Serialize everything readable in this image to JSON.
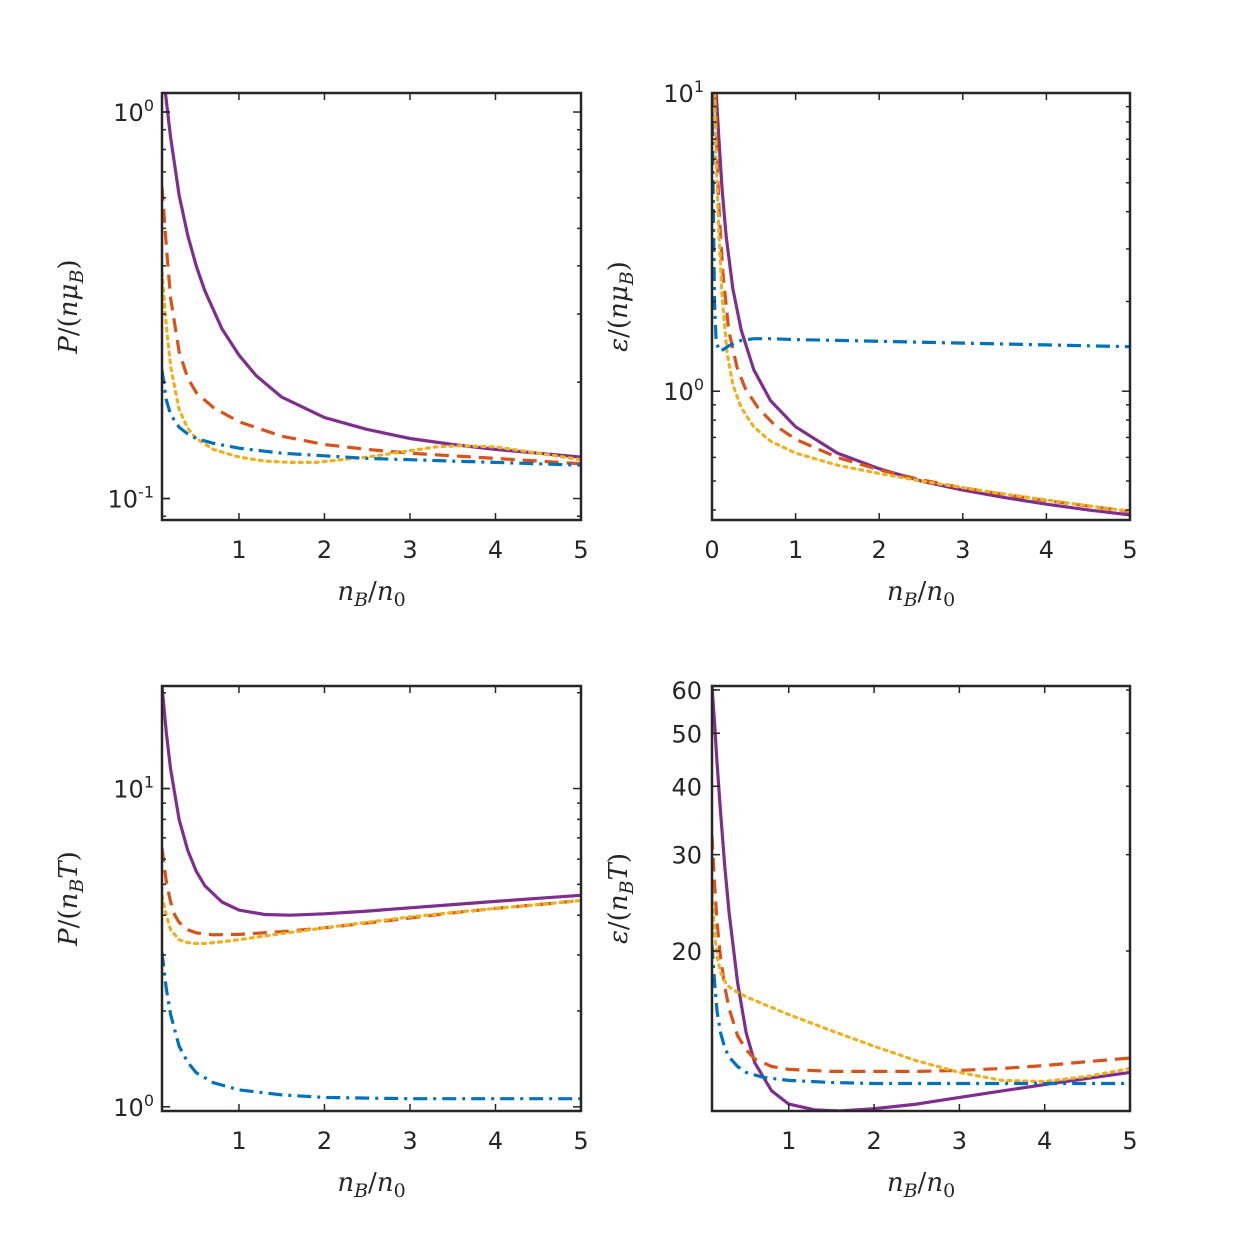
{
  "chart_data": [
    {
      "type": "line",
      "panel": "top-left",
      "xlabel": "n_B/n_0",
      "ylabel": "P/(nμ_B)",
      "yscale": "log",
      "xlim": [
        0.1,
        5
      ],
      "ylim": [
        0.088,
        1.12
      ],
      "xticks": [
        1,
        2,
        3,
        4,
        5
      ],
      "xtick_labels": [
        "1",
        "2",
        "3",
        "4",
        "5"
      ],
      "yticks": [
        0.1,
        1
      ],
      "ytick_labels": [
        {
          "base": "10",
          "exp": "-1"
        },
        {
          "base": "10",
          "exp": "0"
        }
      ],
      "series": [
        {
          "name": "solid",
          "color": "#7E2F8E",
          "style": "solid",
          "x": [
            0.14,
            0.2,
            0.3,
            0.4,
            0.5,
            0.6,
            0.8,
            1.0,
            1.2,
            1.5,
            2.0,
            2.5,
            3.0,
            3.5,
            4.0,
            4.5,
            5.0
          ],
          "y": [
            1.12,
            0.86,
            0.61,
            0.48,
            0.4,
            0.345,
            0.275,
            0.235,
            0.208,
            0.183,
            0.162,
            0.151,
            0.143,
            0.138,
            0.134,
            0.131,
            0.128
          ]
        },
        {
          "name": "dashed",
          "color": "#D95319",
          "style": "dashed",
          "x": [
            0.1,
            0.15,
            0.2,
            0.3,
            0.4,
            0.5,
            0.7,
            1.0,
            1.5,
            2.0,
            2.5,
            3.0,
            3.5,
            4.0,
            4.5,
            5.0
          ],
          "y": [
            0.64,
            0.45,
            0.33,
            0.24,
            0.205,
            0.188,
            0.172,
            0.158,
            0.145,
            0.138,
            0.134,
            0.131,
            0.129,
            0.127,
            0.125,
            0.123
          ]
        },
        {
          "name": "dotted",
          "color": "#EDB120",
          "style": "dotted",
          "x": [
            0.1,
            0.15,
            0.2,
            0.3,
            0.4,
            0.5,
            0.7,
            1.0,
            1.3,
            1.6,
            1.9,
            2.2,
            2.5,
            3.0,
            3.3,
            3.6,
            4.0,
            4.5,
            5.0
          ],
          "y": [
            0.385,
            0.28,
            0.22,
            0.17,
            0.152,
            0.143,
            0.134,
            0.128,
            0.125,
            0.124,
            0.124,
            0.126,
            0.128,
            0.133,
            0.136,
            0.137,
            0.136,
            0.131,
            0.126
          ]
        },
        {
          "name": "dashdot",
          "color": "#0072BD",
          "style": "dashdot",
          "x": [
            0.1,
            0.15,
            0.2,
            0.3,
            0.4,
            0.5,
            0.7,
            1.0,
            1.5,
            2.0,
            2.5,
            3.0,
            3.5,
            4.0,
            4.5,
            5.0
          ],
          "y": [
            0.215,
            0.18,
            0.165,
            0.153,
            0.147,
            0.143,
            0.139,
            0.135,
            0.131,
            0.129,
            0.127,
            0.126,
            0.125,
            0.124,
            0.123,
            0.122
          ]
        }
      ]
    },
    {
      "type": "line",
      "panel": "top-right",
      "xlabel": "n_B/n_0",
      "ylabel": "ε/(nμ_B)",
      "yscale": "log",
      "xlim": [
        0,
        5
      ],
      "ylim": [
        0.37,
        10
      ],
      "xticks": [
        0,
        1,
        2,
        3,
        4,
        5
      ],
      "xtick_labels": [
        "0",
        "1",
        "2",
        "3",
        "4",
        "5"
      ],
      "yticks": [
        1,
        10
      ],
      "ytick_labels": [
        {
          "base": "10",
          "exp": "0"
        },
        {
          "base": "10",
          "exp": "1"
        }
      ],
      "series": [
        {
          "name": "solid",
          "color": "#7E2F8E",
          "style": "solid",
          "x": [
            0.05,
            0.08,
            0.12,
            0.17,
            0.25,
            0.35,
            0.5,
            0.7,
            1.0,
            1.5,
            2.0,
            2.5,
            3.0,
            3.5,
            4.0,
            4.5,
            5.0
          ],
          "y": [
            10,
            7.2,
            4.8,
            3.3,
            2.2,
            1.6,
            1.18,
            0.93,
            0.76,
            0.62,
            0.55,
            0.5,
            0.466,
            0.44,
            0.418,
            0.4,
            0.385
          ]
        },
        {
          "name": "dashed",
          "color": "#D95319",
          "style": "dashed",
          "x": [
            0.04,
            0.06,
            0.09,
            0.13,
            0.2,
            0.3,
            0.4,
            0.55,
            0.75,
            1.0,
            1.5,
            2.0,
            2.5,
            3.0,
            3.5,
            4.0,
            4.5,
            5.0
          ],
          "y": [
            10,
            6.0,
            3.8,
            2.5,
            1.6,
            1.2,
            1.02,
            0.88,
            0.77,
            0.69,
            0.6,
            0.545,
            0.505,
            0.474,
            0.45,
            0.43,
            0.412,
            0.395
          ]
        },
        {
          "name": "dotted",
          "color": "#EDB120",
          "style": "dotted",
          "x": [
            0.03,
            0.05,
            0.08,
            0.12,
            0.18,
            0.25,
            0.35,
            0.5,
            0.7,
            1.0,
            1.5,
            2.0,
            2.5,
            3.0,
            3.5,
            4.0,
            4.5,
            5.0
          ],
          "y": [
            10,
            6.0,
            3.5,
            2.1,
            1.35,
            1.05,
            0.88,
            0.76,
            0.68,
            0.62,
            0.565,
            0.53,
            0.5,
            0.475,
            0.452,
            0.432,
            0.413,
            0.396
          ]
        },
        {
          "name": "dashdot",
          "color": "#0072BD",
          "style": "dashdot",
          "x": [
            0.0,
            0.01,
            0.02,
            0.03,
            0.05,
            0.1,
            0.2,
            0.35,
            0.5,
            0.7,
            1.0,
            1.5,
            2.0,
            2.5,
            3.0,
            3.5,
            4.0,
            4.5,
            5.0
          ],
          "y": [
            10,
            6.0,
            3.3,
            2.0,
            1.45,
            1.36,
            1.42,
            1.48,
            1.5,
            1.5,
            1.49,
            1.48,
            1.47,
            1.46,
            1.45,
            1.44,
            1.43,
            1.42,
            1.41
          ]
        }
      ]
    },
    {
      "type": "line",
      "panel": "bottom-left",
      "xlabel": "n_B/n_0",
      "ylabel": "P/(n_BT)",
      "yscale": "log",
      "xlim": [
        0.1,
        5
      ],
      "ylim": [
        0.97,
        21
      ],
      "xticks": [
        1,
        2,
        3,
        4,
        5
      ],
      "xtick_labels": [
        "1",
        "2",
        "3",
        "4",
        "5"
      ],
      "yticks": [
        1,
        10
      ],
      "ytick_labels": [
        {
          "base": "10",
          "exp": "0"
        },
        {
          "base": "10",
          "exp": "1"
        }
      ],
      "series": [
        {
          "name": "solid",
          "color": "#7E2F8E",
          "style": "solid",
          "x": [
            0.1,
            0.15,
            0.2,
            0.3,
            0.4,
            0.5,
            0.6,
            0.8,
            1.0,
            1.3,
            1.6,
            2.0,
            2.5,
            3.0,
            3.5,
            4.0,
            4.5,
            5.0
          ],
          "y": [
            21,
            15,
            11.5,
            8.0,
            6.4,
            5.5,
            4.95,
            4.4,
            4.15,
            4.02,
            4.0,
            4.04,
            4.12,
            4.22,
            4.32,
            4.42,
            4.52,
            4.62
          ]
        },
        {
          "name": "dashed",
          "color": "#D95319",
          "style": "dashed",
          "x": [
            0.1,
            0.15,
            0.2,
            0.25,
            0.3,
            0.4,
            0.5,
            0.7,
            1.0,
            1.5,
            2.0,
            2.5,
            3.0,
            3.5,
            4.0,
            4.5,
            5.0
          ],
          "y": [
            6.5,
            5.1,
            4.4,
            4.0,
            3.8,
            3.6,
            3.52,
            3.47,
            3.48,
            3.55,
            3.65,
            3.78,
            3.92,
            4.07,
            4.2,
            4.32,
            4.45
          ]
        },
        {
          "name": "dotted",
          "color": "#EDB120",
          "style": "dotted",
          "x": [
            0.1,
            0.15,
            0.2,
            0.3,
            0.4,
            0.5,
            0.6,
            0.8,
            1.0,
            1.5,
            2.0,
            2.5,
            3.0,
            3.5,
            4.0,
            4.5,
            5.0
          ],
          "y": [
            4.6,
            4.0,
            3.6,
            3.35,
            3.28,
            3.26,
            3.26,
            3.3,
            3.35,
            3.5,
            3.65,
            3.8,
            3.95,
            4.08,
            4.2,
            4.32,
            4.45
          ]
        },
        {
          "name": "dashdot",
          "color": "#0072BD",
          "style": "dashdot",
          "x": [
            0.1,
            0.15,
            0.2,
            0.3,
            0.4,
            0.5,
            0.7,
            1.0,
            1.5,
            2.0,
            2.5,
            3.0,
            3.5,
            4.0,
            4.5,
            5.0
          ],
          "y": [
            3.05,
            2.35,
            1.95,
            1.55,
            1.38,
            1.28,
            1.19,
            1.13,
            1.09,
            1.07,
            1.065,
            1.06,
            1.06,
            1.06,
            1.06,
            1.06
          ]
        }
      ]
    },
    {
      "type": "line",
      "panel": "bottom-right",
      "xlabel": "n_B/n_0",
      "ylabel": "ε/(n_BT)",
      "yscale": "log",
      "xlim": [
        0.1,
        5
      ],
      "ylim": [
        10.2,
        61
      ],
      "xticks": [
        1,
        2,
        3,
        4,
        5
      ],
      "xtick_labels": [
        "1",
        "2",
        "3",
        "4",
        "5"
      ],
      "yticks": [
        20,
        30,
        40,
        50,
        60
      ],
      "ytick_labels": [
        "20",
        "30",
        "40",
        "50",
        "60"
      ],
      "series": [
        {
          "name": "solid",
          "color": "#7E2F8E",
          "style": "solid",
          "x": [
            0.1,
            0.13,
            0.16,
            0.2,
            0.25,
            0.3,
            0.4,
            0.5,
            0.6,
            0.8,
            1.0,
            1.3,
            1.6,
            2.0,
            2.5,
            3.0,
            3.5,
            4.0,
            4.5,
            5.0
          ],
          "y": [
            61,
            52,
            44,
            36,
            28.5,
            23.5,
            17.5,
            14.2,
            12.5,
            11.1,
            10.5,
            10.25,
            10.2,
            10.3,
            10.5,
            10.8,
            11.1,
            11.4,
            11.7,
            12.0
          ]
        },
        {
          "name": "dashed",
          "color": "#D95319",
          "style": "dashed",
          "x": [
            0.1,
            0.13,
            0.16,
            0.2,
            0.25,
            0.3,
            0.4,
            0.5,
            0.6,
            0.8,
            1.0,
            1.5,
            2.0,
            2.5,
            3.0,
            3.5,
            4.0,
            4.5,
            5.0
          ],
          "y": [
            32.5,
            26.5,
            22.5,
            19.5,
            17.2,
            15.7,
            14.0,
            13.2,
            12.7,
            12.3,
            12.15,
            12.05,
            12.05,
            12.05,
            12.1,
            12.2,
            12.35,
            12.55,
            12.75
          ]
        },
        {
          "name": "dotted",
          "color": "#EDB120",
          "style": "dotted",
          "x": [
            0.1,
            0.13,
            0.16,
            0.2,
            0.25,
            0.3,
            0.4,
            0.5,
            0.7,
            1.0,
            1.5,
            2.0,
            2.5,
            3.0,
            3.5,
            4.0,
            4.5,
            5.0
          ],
          "y": [
            25.5,
            21.5,
            19.5,
            18.3,
            17.6,
            17.2,
            16.8,
            16.5,
            16.0,
            15.3,
            14.3,
            13.4,
            12.6,
            12.0,
            11.6,
            11.55,
            11.8,
            12.2
          ]
        },
        {
          "name": "dashdot",
          "color": "#0072BD",
          "style": "dashdot",
          "x": [
            0.1,
            0.13,
            0.16,
            0.2,
            0.25,
            0.3,
            0.4,
            0.5,
            0.7,
            1.0,
            1.5,
            2.0,
            2.5,
            3.0,
            3.5,
            4.0,
            4.5,
            5.0
          ],
          "y": [
            20.5,
            17.5,
            15.5,
            14.2,
            13.3,
            12.8,
            12.3,
            12.0,
            11.75,
            11.6,
            11.5,
            11.45,
            11.45,
            11.45,
            11.45,
            11.45,
            11.45,
            11.45
          ]
        }
      ]
    }
  ]
}
